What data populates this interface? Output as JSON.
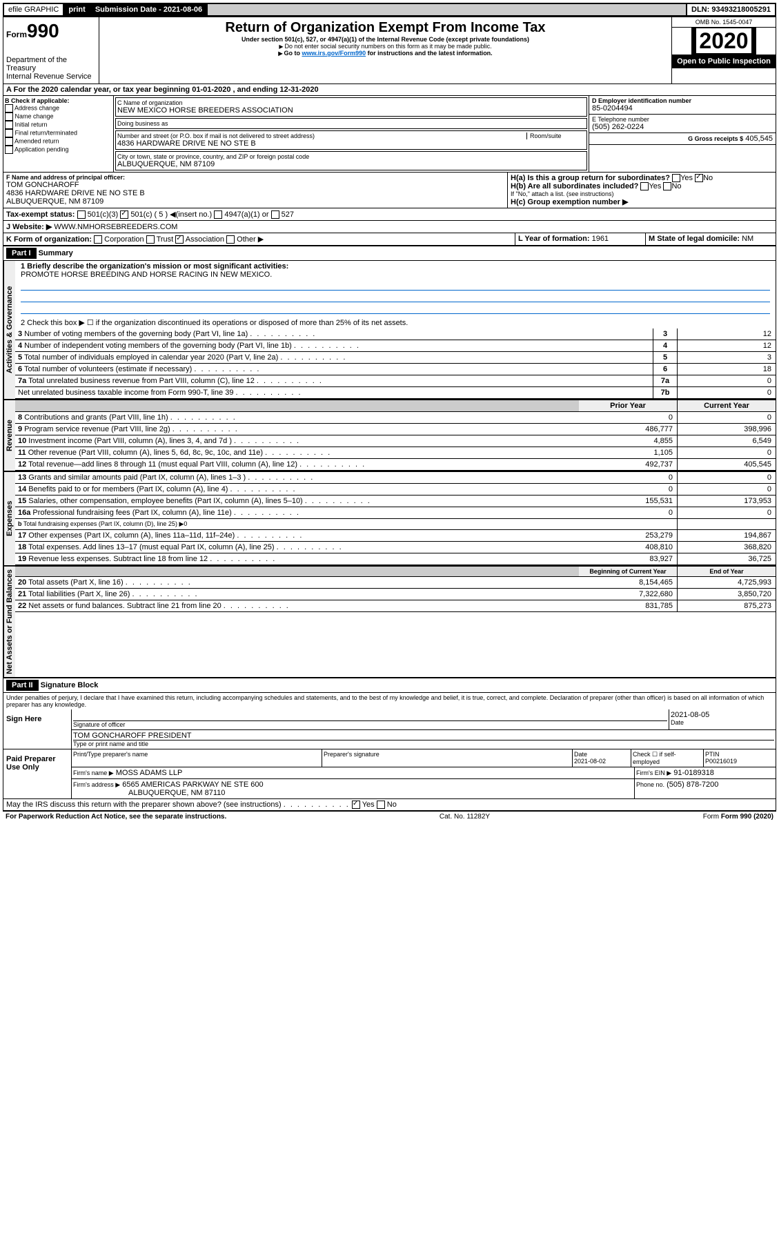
{
  "topbar": {
    "efile": "efile GRAPHIC",
    "print": "print",
    "sub_label": "Submission Date - 2021-08-06",
    "dln": "DLN: 93493218005291"
  },
  "header": {
    "form_prefix": "Form",
    "form_num": "990",
    "dept": "Department of the Treasury",
    "irs": "Internal Revenue Service",
    "title": "Return of Organization Exempt From Income Tax",
    "subtitle": "Under section 501(c), 527, or 4947(a)(1) of the Internal Revenue Code (except private foundations)",
    "note1": "Do not enter social security numbers on this form as it may be made public.",
    "note2_pre": "Go to ",
    "note2_link": "www.irs.gov/Form990",
    "note2_post": " for instructions and the latest information.",
    "omb": "OMB No. 1545-0047",
    "year": "2020",
    "open": "Open to Public Inspection"
  },
  "line_a": "For the 2020 calendar year, or tax year beginning 01-01-2020    , and ending 12-31-2020",
  "box_b": {
    "title": "B Check if applicable:",
    "items": [
      "Address change",
      "Name change",
      "Initial return",
      "Final return/terminated",
      "Amended return",
      "Application pending"
    ]
  },
  "box_c": {
    "label": "C Name of organization",
    "name": "NEW MEXICO HORSE BREEDERS ASSOCIATION",
    "dba": "Doing business as",
    "addr_label": "Number and street (or P.O. box if mail is not delivered to street address)",
    "room": "Room/suite",
    "addr": "4836 HARDWARE DRIVE NE NO STE B",
    "city_label": "City or town, state or province, country, and ZIP or foreign postal code",
    "city": "ALBUQUERQUE, NM  87109"
  },
  "box_d": {
    "label": "D Employer identification number",
    "val": "85-0204494"
  },
  "box_e": {
    "label": "E Telephone number",
    "val": "(505) 262-0224"
  },
  "box_g": {
    "label": "G Gross receipts $",
    "val": "405,545"
  },
  "box_f": {
    "label": "F  Name and address of principal officer:",
    "name": "TOM GONCHAROFF",
    "addr1": "4836 HARDWARE DRIVE NE NO STE B",
    "addr2": "ALBUQUERQUE, NM  87109"
  },
  "box_h": {
    "ha": "H(a)  Is this a group return for subordinates?",
    "hb": "H(b)  Are all subordinates included?",
    "hb_note": "If \"No,\" attach a list. (see instructions)",
    "hc": "H(c)  Group exemption number ▶"
  },
  "tax_status": {
    "label": "Tax-exempt status:",
    "c3": "501(c)(3)",
    "c": "501(c) ( 5 ) ◀(insert no.)",
    "a1": "4947(a)(1) or",
    "s527": "527"
  },
  "line_j": {
    "label": "J    Website: ▶",
    "val": "WWW.NMHORSEBREEDERS.COM"
  },
  "line_k": {
    "label": "K Form of organization:",
    "corp": "Corporation",
    "trust": "Trust",
    "assoc": "Association",
    "other": "Other ▶"
  },
  "line_l": {
    "label": "L Year of formation:",
    "val": "1961"
  },
  "line_m": {
    "label": "M State of legal domicile:",
    "val": "NM"
  },
  "part1": {
    "title": "Part I",
    "name": "Summary",
    "q1": "1  Briefly describe the organization's mission or most significant activities:",
    "q1_ans": "PROMOTE HORSE BREEDING AND HORSE RACING IN NEW MEXICO.",
    "q2": "2   Check this box ▶ ☐  if the organization discontinued its operations or disposed of more than 25% of its net assets.",
    "rows_gov": [
      {
        "n": "3",
        "t": "Number of voting members of the governing body (Part VI, line 1a)",
        "k": "3",
        "v": "12"
      },
      {
        "n": "4",
        "t": "Number of independent voting members of the governing body (Part VI, line 1b)",
        "k": "4",
        "v": "12"
      },
      {
        "n": "5",
        "t": "Total number of individuals employed in calendar year 2020 (Part V, line 2a)",
        "k": "5",
        "v": "3"
      },
      {
        "n": "6",
        "t": "Total number of volunteers (estimate if necessary)",
        "k": "6",
        "v": "18"
      },
      {
        "n": "7a",
        "t": "Total unrelated business revenue from Part VIII, column (C), line 12",
        "k": "7a",
        "v": "0"
      },
      {
        "n": "",
        "t": "Net unrelated business taxable income from Form 990-T, line 39",
        "k": "7b",
        "v": "0"
      }
    ],
    "rev_hdr_prior": "Prior Year",
    "rev_hdr_curr": "Current Year",
    "rows_rev": [
      {
        "n": "8",
        "t": "Contributions and grants (Part VIII, line 1h)",
        "p": "0",
        "c": "0"
      },
      {
        "n": "9",
        "t": "Program service revenue (Part VIII, line 2g)",
        "p": "486,777",
        "c": "398,996"
      },
      {
        "n": "10",
        "t": "Investment income (Part VIII, column (A), lines 3, 4, and 7d )",
        "p": "4,855",
        "c": "6,549"
      },
      {
        "n": "11",
        "t": "Other revenue (Part VIII, column (A), lines 5, 6d, 8c, 9c, 10c, and 11e)",
        "p": "1,105",
        "c": "0"
      },
      {
        "n": "12",
        "t": "Total revenue—add lines 8 through 11 (must equal Part VIII, column (A), line 12)",
        "p": "492,737",
        "c": "405,545"
      }
    ],
    "rows_exp": [
      {
        "n": "13",
        "t": "Grants and similar amounts paid (Part IX, column (A), lines 1–3 )",
        "p": "0",
        "c": "0"
      },
      {
        "n": "14",
        "t": "Benefits paid to or for members (Part IX, column (A), line 4)",
        "p": "0",
        "c": "0"
      },
      {
        "n": "15",
        "t": "Salaries, other compensation, employee benefits (Part IX, column (A), lines 5–10)",
        "p": "155,531",
        "c": "173,953"
      },
      {
        "n": "16a",
        "t": "Professional fundraising fees (Part IX, column (A), line 11e)",
        "p": "0",
        "c": "0"
      },
      {
        "n": "b",
        "t": "Total fundraising expenses (Part IX, column (D), line 25) ▶0",
        "p": "",
        "c": ""
      },
      {
        "n": "17",
        "t": "Other expenses (Part IX, column (A), lines 11a–11d, 11f–24e)",
        "p": "253,279",
        "c": "194,867"
      },
      {
        "n": "18",
        "t": "Total expenses. Add lines 13–17 (must equal Part IX, column (A), line 25)",
        "p": "408,810",
        "c": "368,820"
      },
      {
        "n": "19",
        "t": "Revenue less expenses. Subtract line 18 from line 12",
        "p": "83,927",
        "c": "36,725"
      }
    ],
    "na_hdr_begin": "Beginning of Current Year",
    "na_hdr_end": "End of Year",
    "rows_na": [
      {
        "n": "20",
        "t": "Total assets (Part X, line 16)",
        "p": "8,154,465",
        "c": "4,725,993"
      },
      {
        "n": "21",
        "t": "Total liabilities (Part X, line 26)",
        "p": "7,322,680",
        "c": "3,850,720"
      },
      {
        "n": "22",
        "t": "Net assets or fund balances. Subtract line 21 from line 20",
        "p": "831,785",
        "c": "875,273"
      }
    ]
  },
  "part2": {
    "title": "Part II",
    "name": "Signature Block",
    "decl": "Under penalties of perjury, I declare that I have examined this return, including accompanying schedules and statements, and to the best of my knowledge and belief, it is true, correct, and complete. Declaration of preparer (other than officer) is based on all information of which preparer has any knowledge.",
    "sign_here": "Sign Here",
    "sig_date": "2021-08-05",
    "sig_officer": "Signature of officer",
    "date_lbl": "Date",
    "officer_name": "TOM GONCHAROFF PRESIDENT",
    "type_name": "Type or print name and title",
    "paid": "Paid Preparer Use Only",
    "prep_name_lbl": "Print/Type preparer's name",
    "prep_sig_lbl": "Preparer's signature",
    "prep_date": "2021-08-02",
    "self_emp": "Check ☐ if self-employed",
    "ptin_lbl": "PTIN",
    "ptin": "P00216019",
    "firm_name_lbl": "Firm's name   ▶",
    "firm_name": "MOSS ADAMS LLP",
    "firm_ein_lbl": "Firm's EIN ▶",
    "firm_ein": "91-0189318",
    "firm_addr_lbl": "Firm's address ▶",
    "firm_addr": "6565 AMERICAS PARKWAY NE STE 600",
    "firm_city": "ALBUQUERQUE, NM  87110",
    "phone_lbl": "Phone no.",
    "phone": "(505) 878-7200",
    "discuss": "May the IRS discuss this return with the preparer shown above? (see instructions)",
    "yes": "Yes",
    "no": "No"
  },
  "footer": {
    "pra": "For Paperwork Reduction Act Notice, see the separate instructions.",
    "cat": "Cat. No. 11282Y",
    "form": "Form 990 (2020)"
  },
  "vlabels": {
    "gov": "Activities & Governance",
    "rev": "Revenue",
    "exp": "Expenses",
    "na": "Net Assets or Fund Balances"
  }
}
